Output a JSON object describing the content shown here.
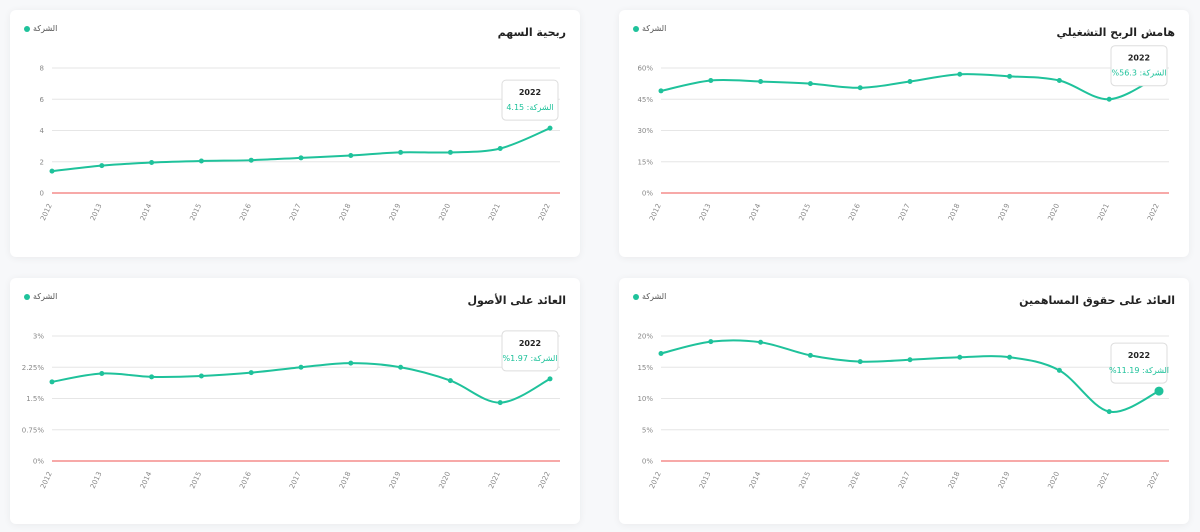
{
  "legend_label": "الشركة",
  "colors": {
    "line": "#1fc29b",
    "baseline": "#ef5350",
    "grid": "#e6e6e6"
  },
  "chart_data": [
    {
      "id": "eps",
      "type": "line",
      "title": "ربحية السهم",
      "categories": [
        "2012",
        "2013",
        "2014",
        "2015",
        "2016",
        "2017",
        "2018",
        "2019",
        "2020",
        "2021",
        "2022"
      ],
      "series": [
        {
          "name": "الشركة",
          "values": [
            1.4,
            1.75,
            1.95,
            2.05,
            2.1,
            2.25,
            2.4,
            2.6,
            2.6,
            2.85,
            4.15
          ]
        }
      ],
      "yticks": [
        0,
        2,
        4,
        6,
        8
      ],
      "ytick_labels": [
        "0",
        "2",
        "4",
        "6",
        "8"
      ],
      "ylim": [
        0,
        8
      ],
      "tooltip": {
        "year": "2022",
        "text": "الشركة: 4.15"
      }
    },
    {
      "id": "opm",
      "type": "line",
      "title": "هامش الربح التشغيلي",
      "categories": [
        "2012",
        "2013",
        "2014",
        "2015",
        "2016",
        "2017",
        "2018",
        "2019",
        "2020",
        "2021",
        "2022"
      ],
      "series": [
        {
          "name": "الشركة",
          "values": [
            49,
            54,
            53.5,
            52.5,
            50.5,
            53.5,
            57,
            56,
            54,
            45,
            56.3
          ]
        }
      ],
      "yticks": [
        0,
        15,
        30,
        45,
        60
      ],
      "ytick_labels": [
        "0%",
        "15%",
        "30%",
        "45%",
        "60%"
      ],
      "ylim": [
        0,
        60
      ],
      "tooltip": {
        "year": "2022",
        "text": "الشركة: 56.3%"
      }
    },
    {
      "id": "roa",
      "type": "line",
      "title": "العائد على الأصول",
      "categories": [
        "2012",
        "2013",
        "2014",
        "2015",
        "2016",
        "2017",
        "2018",
        "2019",
        "2020",
        "2021",
        "2022"
      ],
      "series": [
        {
          "name": "الشركة",
          "values": [
            1.9,
            2.1,
            2.02,
            2.04,
            2.12,
            2.25,
            2.35,
            2.25,
            1.93,
            1.4,
            1.97
          ]
        }
      ],
      "yticks": [
        0,
        0.75,
        1.5,
        2.25,
        3
      ],
      "ytick_labels": [
        "0%",
        "0.75%",
        "1.5%",
        "2.25%",
        "3%"
      ],
      "ylim": [
        0,
        3
      ],
      "tooltip": {
        "year": "2022",
        "text": "الشركة: 1.97%"
      }
    },
    {
      "id": "roe",
      "type": "line",
      "title": "العائد على حقوق المساهمين",
      "categories": [
        "2012",
        "2013",
        "2014",
        "2015",
        "2016",
        "2017",
        "2018",
        "2019",
        "2020",
        "2021",
        "2022"
      ],
      "series": [
        {
          "name": "الشركة",
          "values": [
            17.2,
            19.1,
            19.0,
            16.9,
            15.9,
            16.2,
            16.6,
            16.6,
            14.5,
            7.9,
            11.19
          ]
        }
      ],
      "yticks": [
        0,
        5,
        10,
        15,
        20
      ],
      "ytick_labels": [
        "0%",
        "5%",
        "10%",
        "15%",
        "20%"
      ],
      "ylim": [
        0,
        20
      ],
      "tooltip": {
        "year": "2022",
        "text": "الشركة: 11.19%"
      }
    }
  ]
}
